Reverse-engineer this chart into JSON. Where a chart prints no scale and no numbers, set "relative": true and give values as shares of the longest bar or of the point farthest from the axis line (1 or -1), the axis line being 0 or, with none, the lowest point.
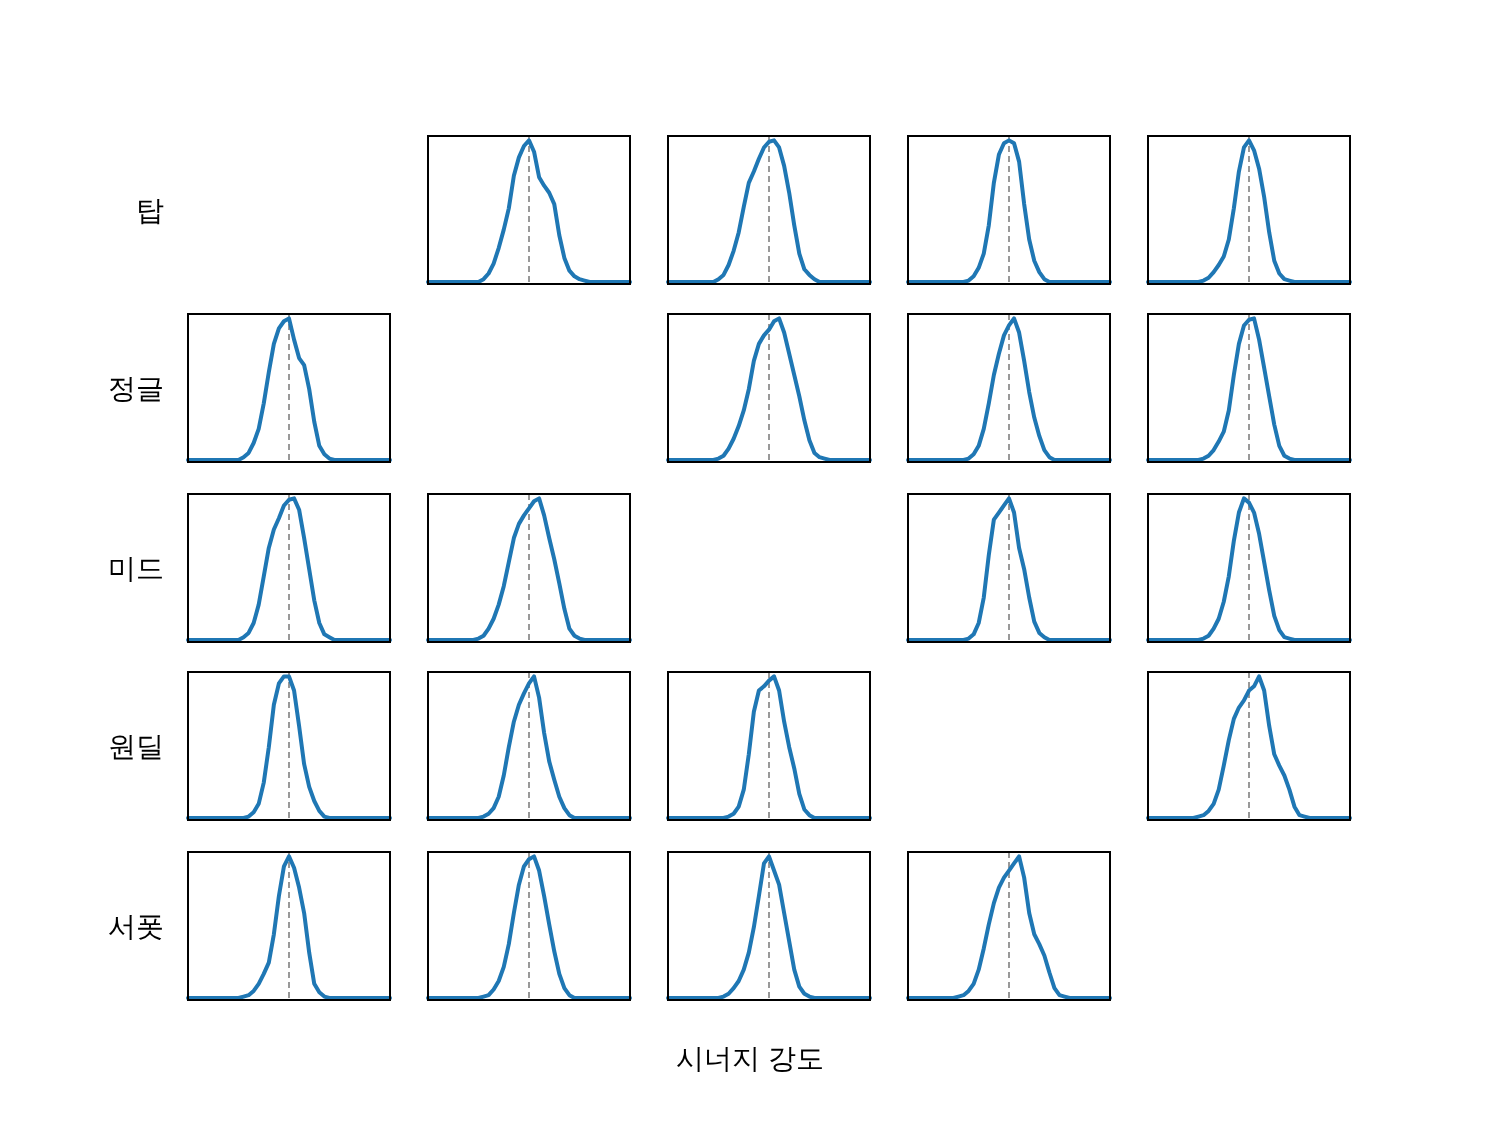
{
  "chart_data": [
    {
      "type": "line",
      "relative": true,
      "ylabel": "탑",
      "color": "#1f77b4",
      "ref_lines": [
        {
          "axis": "x",
          "color": "#808080",
          "line_style": "dashed"
        }
      ],
      "categories": [
        null,
        null,
        null,
        null,
        null,
        null,
        null,
        null,
        null,
        null,
        null,
        null,
        null,
        null,
        null,
        null,
        null,
        null,
        null,
        null,
        null,
        null,
        null,
        null,
        null,
        null,
        null,
        null,
        null,
        null,
        null,
        null,
        null,
        null,
        null,
        null,
        null,
        null,
        null,
        null,
        null
      ],
      "values": [
        0,
        0,
        0,
        0,
        0,
        0,
        0,
        0,
        0,
        0,
        0,
        0.02,
        0.06,
        0.13,
        0.24,
        0.37,
        0.52,
        0.75,
        0.88,
        0.96,
        1,
        0.92,
        0.74,
        0.68,
        0.63,
        0.55,
        0.33,
        0.17,
        0.08,
        0.04,
        0.02,
        0.01,
        0,
        0,
        0,
        0,
        0,
        0,
        0,
        0,
        0
      ]
    },
    {
      "type": "line",
      "relative": true,
      "color": "#1f77b4",
      "ref_lines": [
        {
          "axis": "x",
          "color": "#808080",
          "line_style": "dashed"
        }
      ],
      "categories": [
        null,
        null,
        null,
        null,
        null,
        null,
        null,
        null,
        null,
        null,
        null,
        null,
        null,
        null,
        null,
        null,
        null,
        null,
        null,
        null,
        null,
        null,
        null,
        null,
        null,
        null,
        null,
        null,
        null,
        null,
        null,
        null,
        null,
        null,
        null,
        null,
        null,
        null,
        null,
        null,
        null
      ],
      "values": [
        0,
        0,
        0,
        0,
        0,
        0,
        0,
        0,
        0,
        0,
        0.02,
        0.05,
        0.12,
        0.22,
        0.35,
        0.53,
        0.7,
        0.78,
        0.87,
        0.95,
        0.99,
        1,
        0.95,
        0.82,
        0.63,
        0.4,
        0.2,
        0.09,
        0.05,
        0.02,
        0,
        0,
        0,
        0,
        0,
        0,
        0,
        0,
        0,
        0,
        0
      ]
    },
    {
      "type": "line",
      "relative": true,
      "color": "#1f77b4",
      "ref_lines": [
        {
          "axis": "x",
          "color": "#808080",
          "line_style": "dashed"
        }
      ],
      "categories": [
        null,
        null,
        null,
        null,
        null,
        null,
        null,
        null,
        null,
        null,
        null,
        null,
        null,
        null,
        null,
        null,
        null,
        null,
        null,
        null,
        null,
        null,
        null,
        null,
        null,
        null,
        null,
        null,
        null,
        null,
        null,
        null,
        null,
        null,
        null,
        null,
        null,
        null,
        null,
        null,
        null
      ],
      "values": [
        0,
        0,
        0,
        0,
        0,
        0,
        0,
        0,
        0,
        0,
        0,
        0,
        0.01,
        0.04,
        0.1,
        0.2,
        0.4,
        0.7,
        0.9,
        0.98,
        1,
        0.98,
        0.85,
        0.55,
        0.3,
        0.15,
        0.07,
        0.02,
        0,
        0,
        0,
        0,
        0,
        0,
        0,
        0,
        0,
        0,
        0,
        0,
        0
      ]
    },
    {
      "type": "line",
      "relative": true,
      "color": "#1f77b4",
      "ref_lines": [
        {
          "axis": "x",
          "color": "#808080",
          "line_style": "dashed"
        }
      ],
      "categories": [
        null,
        null,
        null,
        null,
        null,
        null,
        null,
        null,
        null,
        null,
        null,
        null,
        null,
        null,
        null,
        null,
        null,
        null,
        null,
        null,
        null,
        null,
        null,
        null,
        null,
        null,
        null,
        null,
        null,
        null,
        null,
        null,
        null,
        null,
        null,
        null,
        null,
        null,
        null,
        null,
        null
      ],
      "values": [
        0,
        0,
        0,
        0,
        0,
        0,
        0,
        0,
        0,
        0,
        0,
        0.01,
        0.03,
        0.07,
        0.12,
        0.18,
        0.3,
        0.52,
        0.78,
        0.95,
        1,
        0.93,
        0.8,
        0.6,
        0.35,
        0.15,
        0.06,
        0.02,
        0.01,
        0,
        0,
        0,
        0,
        0,
        0,
        0,
        0,
        0,
        0,
        0,
        0
      ]
    },
    {
      "type": "line",
      "relative": true,
      "ylabel": "정글",
      "color": "#1f77b4",
      "ref_lines": [
        {
          "axis": "x",
          "color": "#808080",
          "line_style": "dashed"
        }
      ],
      "categories": [
        null,
        null,
        null,
        null,
        null,
        null,
        null,
        null,
        null,
        null,
        null,
        null,
        null,
        null,
        null,
        null,
        null,
        null,
        null,
        null,
        null,
        null,
        null,
        null,
        null,
        null,
        null,
        null,
        null,
        null,
        null,
        null,
        null,
        null,
        null,
        null,
        null,
        null,
        null,
        null,
        null
      ],
      "values": [
        0,
        0,
        0,
        0,
        0,
        0,
        0,
        0,
        0,
        0,
        0,
        0.02,
        0.05,
        0.12,
        0.22,
        0.4,
        0.62,
        0.82,
        0.93,
        0.98,
        1,
        0.85,
        0.72,
        0.67,
        0.5,
        0.27,
        0.1,
        0.04,
        0.01,
        0,
        0,
        0,
        0,
        0,
        0,
        0,
        0,
        0,
        0,
        0,
        0
      ]
    },
    {
      "type": "line",
      "relative": true,
      "color": "#1f77b4",
      "ref_lines": [
        {
          "axis": "x",
          "color": "#808080",
          "line_style": "dashed"
        }
      ],
      "categories": [
        null,
        null,
        null,
        null,
        null,
        null,
        null,
        null,
        null,
        null,
        null,
        null,
        null,
        null,
        null,
        null,
        null,
        null,
        null,
        null,
        null,
        null,
        null,
        null,
        null,
        null,
        null,
        null,
        null,
        null,
        null,
        null,
        null,
        null,
        null,
        null,
        null,
        null,
        null,
        null,
        null
      ],
      "values": [
        0,
        0,
        0,
        0,
        0,
        0,
        0,
        0,
        0,
        0,
        0.01,
        0.03,
        0.08,
        0.15,
        0.24,
        0.35,
        0.5,
        0.7,
        0.82,
        0.88,
        0.92,
        0.98,
        1,
        0.9,
        0.75,
        0.6,
        0.45,
        0.28,
        0.14,
        0.05,
        0.02,
        0.01,
        0,
        0,
        0,
        0,
        0,
        0,
        0,
        0,
        0
      ]
    },
    {
      "type": "line",
      "relative": true,
      "color": "#1f77b4",
      "ref_lines": [
        {
          "axis": "x",
          "color": "#808080",
          "line_style": "dashed"
        }
      ],
      "categories": [
        null,
        null,
        null,
        null,
        null,
        null,
        null,
        null,
        null,
        null,
        null,
        null,
        null,
        null,
        null,
        null,
        null,
        null,
        null,
        null,
        null,
        null,
        null,
        null,
        null,
        null,
        null,
        null,
        null,
        null,
        null,
        null,
        null,
        null,
        null,
        null,
        null,
        null,
        null,
        null,
        null
      ],
      "values": [
        0,
        0,
        0,
        0,
        0,
        0,
        0,
        0,
        0,
        0,
        0,
        0,
        0.01,
        0.04,
        0.1,
        0.22,
        0.4,
        0.6,
        0.75,
        0.88,
        0.95,
        1,
        0.9,
        0.7,
        0.48,
        0.3,
        0.17,
        0.07,
        0.02,
        0,
        0,
        0,
        0,
        0,
        0,
        0,
        0,
        0,
        0,
        0,
        0
      ]
    },
    {
      "type": "line",
      "relative": true,
      "color": "#1f77b4",
      "ref_lines": [
        {
          "axis": "x",
          "color": "#808080",
          "line_style": "dashed"
        }
      ],
      "categories": [
        null,
        null,
        null,
        null,
        null,
        null,
        null,
        null,
        null,
        null,
        null,
        null,
        null,
        null,
        null,
        null,
        null,
        null,
        null,
        null,
        null,
        null,
        null,
        null,
        null,
        null,
        null,
        null,
        null,
        null,
        null,
        null,
        null,
        null,
        null,
        null,
        null,
        null,
        null,
        null,
        null
      ],
      "values": [
        0,
        0,
        0,
        0,
        0,
        0,
        0,
        0,
        0,
        0,
        0,
        0.01,
        0.03,
        0.07,
        0.13,
        0.2,
        0.35,
        0.6,
        0.82,
        0.95,
        0.99,
        1,
        0.85,
        0.65,
        0.45,
        0.25,
        0.1,
        0.03,
        0.01,
        0,
        0,
        0,
        0,
        0,
        0,
        0,
        0,
        0,
        0,
        0,
        0
      ]
    },
    {
      "type": "line",
      "relative": true,
      "ylabel": "미드",
      "color": "#1f77b4",
      "ref_lines": [
        {
          "axis": "x",
          "color": "#808080",
          "line_style": "dashed"
        }
      ],
      "categories": [
        null,
        null,
        null,
        null,
        null,
        null,
        null,
        null,
        null,
        null,
        null,
        null,
        null,
        null,
        null,
        null,
        null,
        null,
        null,
        null,
        null,
        null,
        null,
        null,
        null,
        null,
        null,
        null,
        null,
        null,
        null,
        null,
        null,
        null,
        null,
        null,
        null,
        null,
        null,
        null,
        null
      ],
      "values": [
        0,
        0,
        0,
        0,
        0,
        0,
        0,
        0,
        0,
        0,
        0,
        0.02,
        0.05,
        0.12,
        0.25,
        0.45,
        0.65,
        0.78,
        0.86,
        0.95,
        0.99,
        1,
        0.92,
        0.72,
        0.5,
        0.28,
        0.12,
        0.04,
        0.02,
        0,
        0,
        0,
        0,
        0,
        0,
        0,
        0,
        0,
        0,
        0,
        0
      ]
    },
    {
      "type": "line",
      "relative": true,
      "color": "#1f77b4",
      "ref_lines": [
        {
          "axis": "x",
          "color": "#808080",
          "line_style": "dashed"
        }
      ],
      "categories": [
        null,
        null,
        null,
        null,
        null,
        null,
        null,
        null,
        null,
        null,
        null,
        null,
        null,
        null,
        null,
        null,
        null,
        null,
        null,
        null,
        null,
        null,
        null,
        null,
        null,
        null,
        null,
        null,
        null,
        null,
        null,
        null,
        null,
        null,
        null,
        null,
        null,
        null,
        null,
        null,
        null
      ],
      "values": [
        0,
        0,
        0,
        0,
        0,
        0,
        0,
        0,
        0,
        0,
        0.01,
        0.03,
        0.08,
        0.15,
        0.25,
        0.38,
        0.55,
        0.72,
        0.82,
        0.88,
        0.93,
        0.98,
        1,
        0.88,
        0.72,
        0.57,
        0.4,
        0.22,
        0.08,
        0.03,
        0.01,
        0,
        0,
        0,
        0,
        0,
        0,
        0,
        0,
        0,
        0
      ]
    },
    {
      "type": "line",
      "relative": true,
      "color": "#1f77b4",
      "ref_lines": [
        {
          "axis": "x",
          "color": "#808080",
          "line_style": "dashed"
        }
      ],
      "categories": [
        null,
        null,
        null,
        null,
        null,
        null,
        null,
        null,
        null,
        null,
        null,
        null,
        null,
        null,
        null,
        null,
        null,
        null,
        null,
        null,
        null,
        null,
        null,
        null,
        null,
        null,
        null,
        null,
        null,
        null,
        null,
        null,
        null,
        null,
        null,
        null,
        null,
        null,
        null,
        null,
        null
      ],
      "values": [
        0,
        0,
        0,
        0,
        0,
        0,
        0,
        0,
        0,
        0,
        0,
        0,
        0.01,
        0.04,
        0.12,
        0.3,
        0.6,
        0.85,
        0.9,
        0.95,
        1,
        0.9,
        0.65,
        0.5,
        0.3,
        0.13,
        0.05,
        0.02,
        0,
        0,
        0,
        0,
        0,
        0,
        0,
        0,
        0,
        0,
        0,
        0,
        0
      ]
    },
    {
      "type": "line",
      "relative": true,
      "color": "#1f77b4",
      "ref_lines": [
        {
          "axis": "x",
          "color": "#808080",
          "line_style": "dashed"
        }
      ],
      "categories": [
        null,
        null,
        null,
        null,
        null,
        null,
        null,
        null,
        null,
        null,
        null,
        null,
        null,
        null,
        null,
        null,
        null,
        null,
        null,
        null,
        null,
        null,
        null,
        null,
        null,
        null,
        null,
        null,
        null,
        null,
        null,
        null,
        null,
        null,
        null,
        null,
        null,
        null,
        null,
        null,
        null
      ],
      "values": [
        0,
        0,
        0,
        0,
        0,
        0,
        0,
        0,
        0,
        0,
        0,
        0.01,
        0.03,
        0.08,
        0.15,
        0.27,
        0.45,
        0.7,
        0.9,
        1,
        0.97,
        0.9,
        0.75,
        0.55,
        0.35,
        0.17,
        0.07,
        0.02,
        0.01,
        0,
        0,
        0,
        0,
        0,
        0,
        0,
        0,
        0,
        0,
        0,
        0
      ]
    },
    {
      "type": "line",
      "relative": true,
      "ylabel": "원딜",
      "color": "#1f77b4",
      "ref_lines": [
        {
          "axis": "x",
          "color": "#808080",
          "line_style": "dashed"
        }
      ],
      "categories": [
        null,
        null,
        null,
        null,
        null,
        null,
        null,
        null,
        null,
        null,
        null,
        null,
        null,
        null,
        null,
        null,
        null,
        null,
        null,
        null,
        null,
        null,
        null,
        null,
        null,
        null,
        null,
        null,
        null,
        null,
        null,
        null,
        null,
        null,
        null,
        null,
        null,
        null,
        null,
        null,
        null
      ],
      "values": [
        0,
        0,
        0,
        0,
        0,
        0,
        0,
        0,
        0,
        0,
        0,
        0,
        0.01,
        0.04,
        0.1,
        0.25,
        0.5,
        0.8,
        0.95,
        1,
        1,
        0.9,
        0.65,
        0.38,
        0.22,
        0.12,
        0.05,
        0.01,
        0,
        0,
        0,
        0,
        0,
        0,
        0,
        0,
        0,
        0,
        0,
        0,
        0
      ]
    },
    {
      "type": "line",
      "relative": true,
      "color": "#1f77b4",
      "ref_lines": [
        {
          "axis": "x",
          "color": "#808080",
          "line_style": "dashed"
        }
      ],
      "categories": [
        null,
        null,
        null,
        null,
        null,
        null,
        null,
        null,
        null,
        null,
        null,
        null,
        null,
        null,
        null,
        null,
        null,
        null,
        null,
        null,
        null,
        null,
        null,
        null,
        null,
        null,
        null,
        null,
        null,
        null,
        null,
        null,
        null,
        null,
        null,
        null,
        null,
        null,
        null,
        null,
        null
      ],
      "values": [
        0,
        0,
        0,
        0,
        0,
        0,
        0,
        0,
        0,
        0,
        0,
        0.01,
        0.03,
        0.07,
        0.15,
        0.3,
        0.5,
        0.68,
        0.8,
        0.88,
        0.95,
        1,
        0.85,
        0.6,
        0.4,
        0.27,
        0.15,
        0.07,
        0.02,
        0,
        0,
        0,
        0,
        0,
        0,
        0,
        0,
        0,
        0,
        0,
        0
      ]
    },
    {
      "type": "line",
      "relative": true,
      "color": "#1f77b4",
      "ref_lines": [
        {
          "axis": "x",
          "color": "#808080",
          "line_style": "dashed"
        }
      ],
      "categories": [
        null,
        null,
        null,
        null,
        null,
        null,
        null,
        null,
        null,
        null,
        null,
        null,
        null,
        null,
        null,
        null,
        null,
        null,
        null,
        null,
        null,
        null,
        null,
        null,
        null,
        null,
        null,
        null,
        null,
        null,
        null,
        null,
        null,
        null,
        null,
        null,
        null,
        null,
        null,
        null,
        null
      ],
      "values": [
        0,
        0,
        0,
        0,
        0,
        0,
        0,
        0,
        0,
        0,
        0,
        0,
        0.01,
        0.03,
        0.08,
        0.2,
        0.45,
        0.75,
        0.9,
        0.93,
        0.97,
        1,
        0.9,
        0.68,
        0.5,
        0.35,
        0.17,
        0.06,
        0.02,
        0,
        0,
        0,
        0,
        0,
        0,
        0,
        0,
        0,
        0,
        0,
        0
      ]
    },
    {
      "type": "line",
      "relative": true,
      "color": "#1f77b4",
      "ref_lines": [
        {
          "axis": "x",
          "color": "#808080",
          "line_style": "dashed"
        }
      ],
      "categories": [
        null,
        null,
        null,
        null,
        null,
        null,
        null,
        null,
        null,
        null,
        null,
        null,
        null,
        null,
        null,
        null,
        null,
        null,
        null,
        null,
        null,
        null,
        null,
        null,
        null,
        null,
        null,
        null,
        null,
        null,
        null,
        null,
        null,
        null,
        null,
        null,
        null,
        null,
        null,
        null,
        null
      ],
      "values": [
        0,
        0,
        0,
        0,
        0,
        0,
        0,
        0,
        0,
        0,
        0.01,
        0.02,
        0.05,
        0.1,
        0.2,
        0.37,
        0.55,
        0.7,
        0.78,
        0.83,
        0.9,
        0.93,
        1,
        0.9,
        0.65,
        0.45,
        0.37,
        0.3,
        0.2,
        0.08,
        0.02,
        0.01,
        0,
        0,
        0,
        0,
        0,
        0,
        0,
        0,
        0
      ]
    },
    {
      "type": "line",
      "relative": true,
      "ylabel": "서폿",
      "color": "#1f77b4",
      "ref_lines": [
        {
          "axis": "x",
          "color": "#808080",
          "line_style": "dashed"
        }
      ],
      "categories": [
        null,
        null,
        null,
        null,
        null,
        null,
        null,
        null,
        null,
        null,
        null,
        null,
        null,
        null,
        null,
        null,
        null,
        null,
        null,
        null,
        null,
        null,
        null,
        null,
        null,
        null,
        null,
        null,
        null,
        null,
        null,
        null,
        null,
        null,
        null,
        null,
        null,
        null,
        null,
        null,
        null
      ],
      "values": [
        0,
        0,
        0,
        0,
        0,
        0,
        0,
        0,
        0,
        0,
        0,
        0.01,
        0.02,
        0.05,
        0.1,
        0.17,
        0.25,
        0.45,
        0.72,
        0.93,
        1,
        0.92,
        0.78,
        0.6,
        0.32,
        0.1,
        0.04,
        0.01,
        0,
        0,
        0,
        0,
        0,
        0,
        0,
        0,
        0,
        0,
        0,
        0,
        0
      ]
    },
    {
      "type": "line",
      "relative": true,
      "color": "#1f77b4",
      "ref_lines": [
        {
          "axis": "x",
          "color": "#808080",
          "line_style": "dashed"
        }
      ],
      "categories": [
        null,
        null,
        null,
        null,
        null,
        null,
        null,
        null,
        null,
        null,
        null,
        null,
        null,
        null,
        null,
        null,
        null,
        null,
        null,
        null,
        null,
        null,
        null,
        null,
        null,
        null,
        null,
        null,
        null,
        null,
        null,
        null,
        null,
        null,
        null,
        null,
        null,
        null,
        null,
        null,
        null
      ],
      "values": [
        0,
        0,
        0,
        0,
        0,
        0,
        0,
        0,
        0,
        0,
        0,
        0.01,
        0.02,
        0.06,
        0.12,
        0.22,
        0.38,
        0.6,
        0.8,
        0.93,
        0.98,
        1,
        0.9,
        0.72,
        0.52,
        0.33,
        0.17,
        0.07,
        0.02,
        0,
        0,
        0,
        0,
        0,
        0,
        0,
        0,
        0,
        0,
        0,
        0
      ]
    },
    {
      "type": "line",
      "relative": true,
      "xlabel": "시너지 강도",
      "color": "#1f77b4",
      "ref_lines": [
        {
          "axis": "x",
          "color": "#808080",
          "line_style": "dashed"
        }
      ],
      "categories": [
        null,
        null,
        null,
        null,
        null,
        null,
        null,
        null,
        null,
        null,
        null,
        null,
        null,
        null,
        null,
        null,
        null,
        null,
        null,
        null,
        null,
        null,
        null,
        null,
        null,
        null,
        null,
        null,
        null,
        null,
        null,
        null,
        null,
        null,
        null,
        null,
        null,
        null,
        null,
        null,
        null
      ],
      "values": [
        0,
        0,
        0,
        0,
        0,
        0,
        0,
        0,
        0,
        0,
        0,
        0.01,
        0.03,
        0.07,
        0.12,
        0.2,
        0.32,
        0.5,
        0.72,
        0.95,
        1,
        0.9,
        0.8,
        0.6,
        0.4,
        0.2,
        0.08,
        0.03,
        0.01,
        0,
        0,
        0,
        0,
        0,
        0,
        0,
        0,
        0,
        0,
        0,
        0
      ]
    },
    {
      "type": "line",
      "relative": true,
      "color": "#1f77b4",
      "ref_lines": [
        {
          "axis": "x",
          "color": "#808080",
          "line_style": "dashed"
        }
      ],
      "categories": [
        null,
        null,
        null,
        null,
        null,
        null,
        null,
        null,
        null,
        null,
        null,
        null,
        null,
        null,
        null,
        null,
        null,
        null,
        null,
        null,
        null,
        null,
        null,
        null,
        null,
        null,
        null,
        null,
        null,
        null,
        null,
        null,
        null,
        null,
        null,
        null,
        null,
        null,
        null,
        null,
        null
      ],
      "values": [
        0,
        0,
        0,
        0,
        0,
        0,
        0,
        0,
        0,
        0,
        0.01,
        0.02,
        0.05,
        0.1,
        0.2,
        0.35,
        0.52,
        0.67,
        0.78,
        0.85,
        0.9,
        0.95,
        1,
        0.85,
        0.6,
        0.45,
        0.38,
        0.3,
        0.18,
        0.07,
        0.02,
        0.01,
        0,
        0,
        0,
        0,
        0,
        0,
        0,
        0,
        0
      ]
    }
  ]
}
